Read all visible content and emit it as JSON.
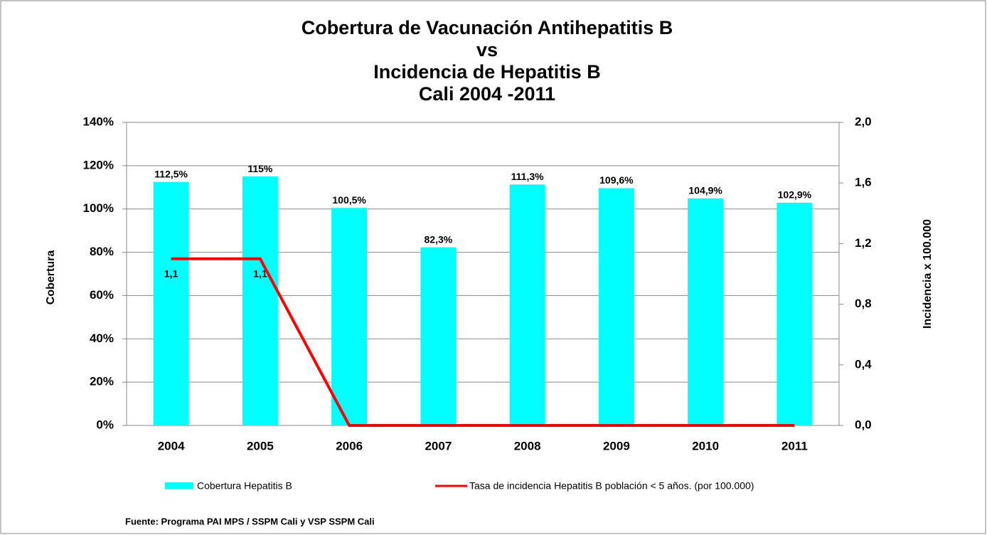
{
  "chart_data": {
    "type": "bar",
    "title": [
      "Cobertura de Vacunación Antihepatitis B",
      "vs",
      "Incidencia de Hepatitis B",
      "Cali 2004 -2011"
    ],
    "categories": [
      "2004",
      "2005",
      "2006",
      "2007",
      "2008",
      "2009",
      "2010",
      "2011"
    ],
    "series": [
      {
        "name": "Cobertura Hepatitis B",
        "type": "bar",
        "color": "#00ffff",
        "values": [
          112.5,
          115,
          100.5,
          82.3,
          111.3,
          109.6,
          104.9,
          102.9
        ],
        "value_labels": [
          "112,5%",
          "115%",
          "100,5%",
          "82,3%",
          "111,3%",
          "109,6%",
          "104,9%",
          "102,9%"
        ]
      },
      {
        "name": "Tasa de incidencia Hepatitis B población < 5 años. (por 100.000)",
        "type": "line",
        "axis": "y2",
        "color": "#ff0000",
        "values": [
          1.1,
          1.1,
          0,
          0,
          0,
          0,
          0,
          0
        ],
        "value_labels": [
          "1,1",
          "1,1",
          null,
          null,
          null,
          null,
          null,
          null
        ]
      }
    ],
    "ylabel": "Cobertura",
    "y2label": "Incidencia x 100.000",
    "ylim": [
      0,
      140
    ],
    "yticks": [
      {
        "value": 0,
        "label": "0%"
      },
      {
        "value": 20,
        "label": "20%"
      },
      {
        "value": 40,
        "label": "40%"
      },
      {
        "value": 60,
        "label": "60%"
      },
      {
        "value": 80,
        "label": "80%"
      },
      {
        "value": 100,
        "label": "100%"
      },
      {
        "value": 120,
        "label": "120%"
      },
      {
        "value": 140,
        "label": "140%"
      }
    ],
    "y2lim": [
      0,
      2
    ],
    "y2ticks": [
      {
        "value": 0,
        "label": "0,0"
      },
      {
        "value": 0.4,
        "label": "0,4"
      },
      {
        "value": 0.8,
        "label": "0,8"
      },
      {
        "value": 1.2,
        "label": "1,2"
      },
      {
        "value": 1.6,
        "label": "1,6"
      },
      {
        "value": 2,
        "label": "2,0"
      }
    ],
    "grid": true,
    "legend": "bottom",
    "source": "Fuente: Programa PAI MPS / SSPM Cali y VSP SSPM Cali"
  }
}
